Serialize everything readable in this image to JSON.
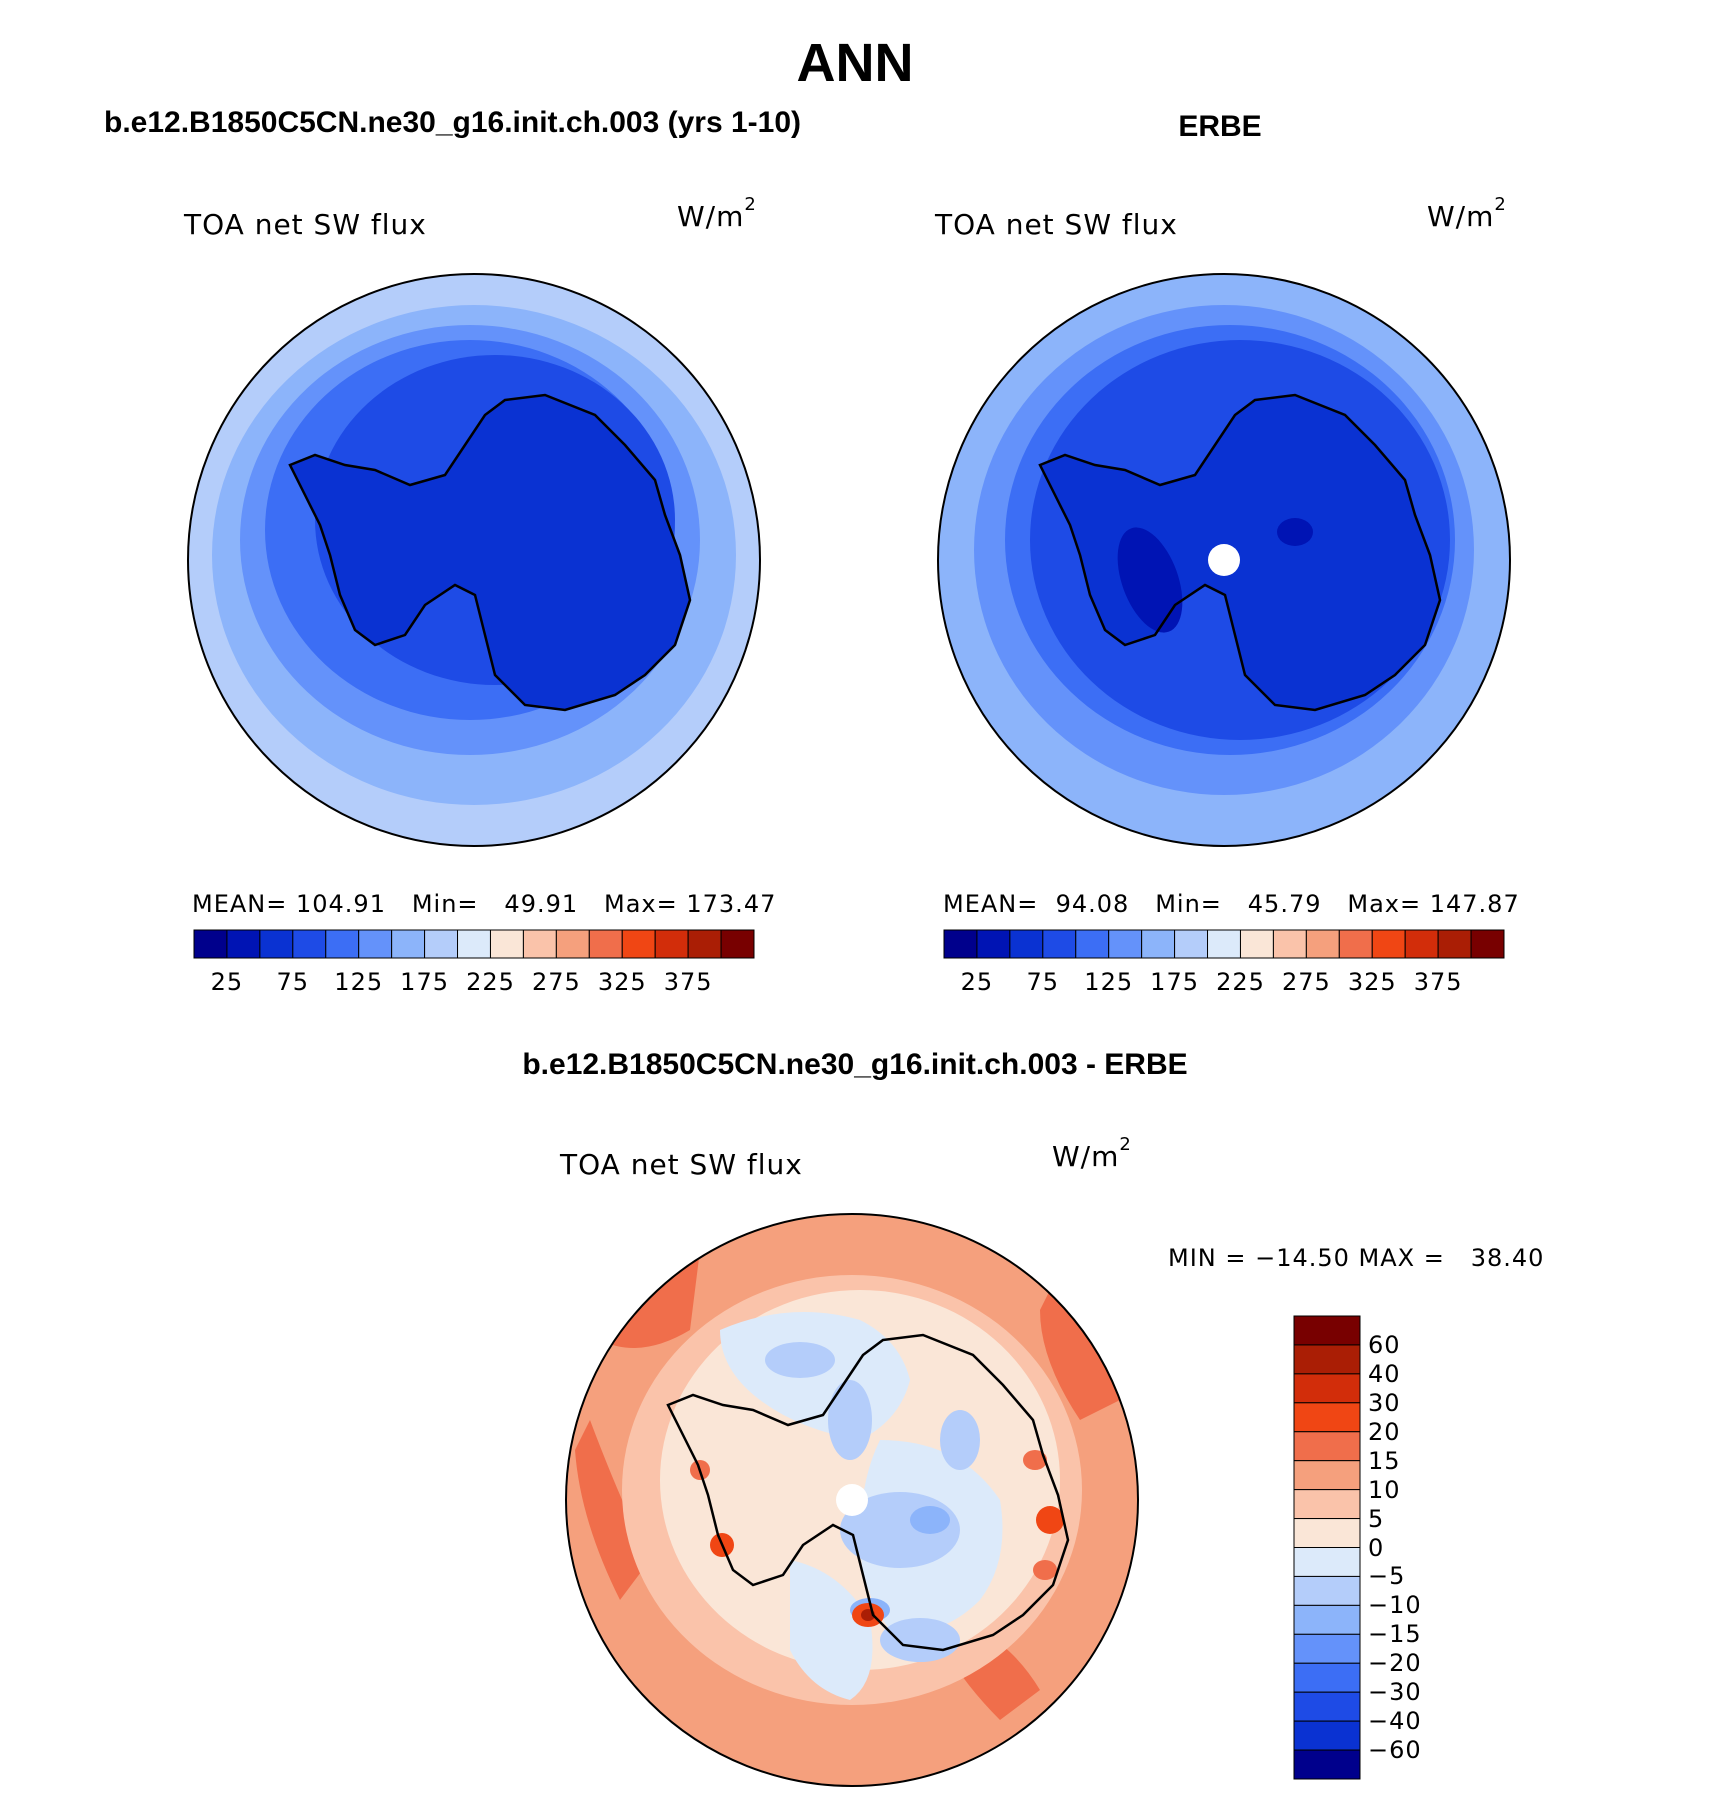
{
  "header": {
    "season": "ANN",
    "left_case": "b.e12.B1850C5CN.ne30_g16.init.ch.003 (yrs 1-10)",
    "right_case": "ERBE",
    "diff_case": "b.e12.B1850C5CN.ne30_g16.init.ch.003 - ERBE"
  },
  "panels": [
    {
      "variable": "TOA net SW flux",
      "unit_base": "W/m",
      "unit_exp": "2",
      "stats": "MEAN= 104.91   Min=   49.91   Max= 173.47"
    },
    {
      "variable": "TOA net SW flux",
      "unit_base": "W/m",
      "unit_exp": "2",
      "stats": "MEAN=  94.08   Min=   45.79   Max= 147.87"
    }
  ],
  "diff_panel": {
    "variable": "TOA net SW flux",
    "unit_base": "W/m",
    "unit_exp": "2",
    "minmax": "MIN = −14.50 MAX =   38.40"
  },
  "colorbar_top": {
    "tick_labels": [
      "25",
      "75",
      "125",
      "175",
      "225",
      "275",
      "325",
      "375"
    ],
    "colors": [
      "#00008c",
      "#0014b4",
      "#0a32d2",
      "#1e4be6",
      "#3c6ef5",
      "#6492fa",
      "#8cb4fa",
      "#b4cdfa",
      "#dceafa",
      "#fae6d7",
      "#fac3aa",
      "#f5a07d",
      "#f06e4b",
      "#f04614",
      "#d22d0a",
      "#aa1e05",
      "#780000"
    ]
  },
  "colorbar_diff": {
    "labels": [
      "60",
      "40",
      "30",
      "20",
      "15",
      "10",
      "5",
      "0",
      "−5",
      "−10",
      "−15",
      "−20",
      "−30",
      "−40",
      "−60"
    ],
    "colors": [
      "#780000",
      "#aa1e05",
      "#d22d0a",
      "#f04614",
      "#f06e4b",
      "#f5a07d",
      "#fac3aa",
      "#fae6d7",
      "#dceafa",
      "#b4cdfa",
      "#8cb4fa",
      "#6492fa",
      "#3c6ef5",
      "#1e4be6",
      "#0a32d2",
      "#00008c"
    ]
  }
}
